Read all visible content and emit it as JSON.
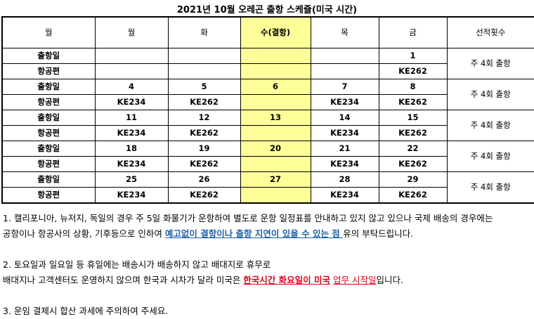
{
  "title": "2021년 10월 오레곤 출항 스케쥴(미국 시간)",
  "header": [
    "월",
    "월",
    "화",
    "수(결항)",
    "목",
    "금",
    "선적횟수"
  ],
  "weeks": [
    {
      "departure": [
        "출항일",
        "",
        "",
        "",
        "",
        "1"
      ],
      "flight": [
        "항공편",
        "",
        "",
        "",
        "",
        "KE262"
      ],
      "freq": "주 4회 출항"
    },
    {
      "departure": [
        "출항일",
        "4",
        "5",
        "6",
        "7",
        "8"
      ],
      "flight": [
        "항공편",
        "KE234",
        "KE262",
        "",
        "KE234",
        "KE262"
      ],
      "freq": "주 4회 출항"
    },
    {
      "departure": [
        "출항일",
        "11",
        "12",
        "13",
        "14",
        "15"
      ],
      "flight": [
        "항공편",
        "KE234",
        "KE262",
        "",
        "KE234",
        "KE262"
      ],
      "freq": "주 4회 출항"
    },
    {
      "departure": [
        "출항일",
        "18",
        "19",
        "20",
        "21",
        "22"
      ],
      "flight": [
        "항공편",
        "KE234",
        "KE262",
        "",
        "KE234",
        "KE262"
      ],
      "freq": "주 4회 출항"
    },
    {
      "departure": [
        "출항일",
        "25",
        "26",
        "27",
        "28",
        "29"
      ],
      "flight": [
        "항공편",
        "KE234",
        "KE262",
        "",
        "KE234",
        "KE262"
      ],
      "freq": "주 4회 출항"
    }
  ],
  "notes": {
    "n1_a": "1. 캘리포니아, 뉴저지, 독일의 경우 주 5일 화물기가 운항하여 별도로 운항 일정표를 안내하고 있지 않고 있으나 국제 배송의 경우에는",
    "n1_b": "공항이나 항공사의 상황, 기후등으로 인하여 ",
    "n1_highlight": "예고없이 결항이나 출항 지연이 있을 수 있는 점 ",
    "n1_c": "유의 부탁드립니다.",
    "n2_a": "2. 토요일과 일요일 등 휴일에는 배송시가 배송하지 않고 배대지로 휴무로",
    "n2_b": "배대지나 고객센터도 운영하지 않으며 한국과 시차가 달라 미국은 ",
    "n2_red": "한국시간 화요일이 미국",
    "n2_space": " ",
    "n2_red2": "업무 시작일",
    "n2_c": "입니다.",
    "n3": "3. 운임 결제시 합산 과세에 주의하여 주세요."
  },
  "colors": {
    "highlight_col": "#ffff99",
    "blue": "#1f5fa8",
    "red": "#e0001a"
  }
}
